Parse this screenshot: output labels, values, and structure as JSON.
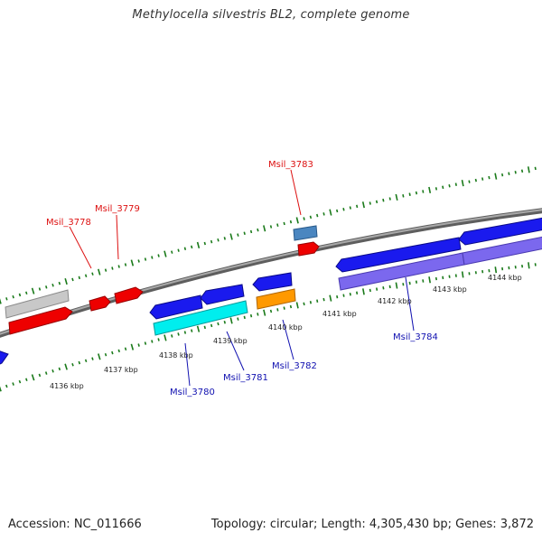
{
  "title": "Methylocella silvestris BL2, complete genome",
  "footer": {
    "accession": "Accession: NC_011666",
    "summary": "Topology: circular; Length: 4,305,430 bp; Genes: 3,872"
  },
  "colors": {
    "backbone": "#8a8a8a",
    "tick": "#1a7a1a",
    "forward_label": "#dd1111",
    "reverse_label": "#1010b0",
    "gene_red": "#ee0000",
    "gene_blue": "#1a1aee",
    "gene_gray": "#c8c8c8",
    "gene_cyan": "#00eeee",
    "gene_orange": "#ff9900",
    "gene_steel": "#4a86c0",
    "gene_purple": "#7b68ee"
  },
  "kbp_ticks": [
    "4136 kbp",
    "4137 kbp",
    "4138 kbp",
    "4139 kbp",
    "4140 kbp",
    "4141 kbp",
    "4142 kbp",
    "4143 kbp",
    "4144 kbp"
  ],
  "gene_labels": {
    "forward": [
      "Msil_3778",
      "Msil_3779",
      "Msil_3783"
    ],
    "reverse": [
      "Msil_3780",
      "Msil_3781",
      "Msil_3782",
      "Msil_3784"
    ]
  }
}
